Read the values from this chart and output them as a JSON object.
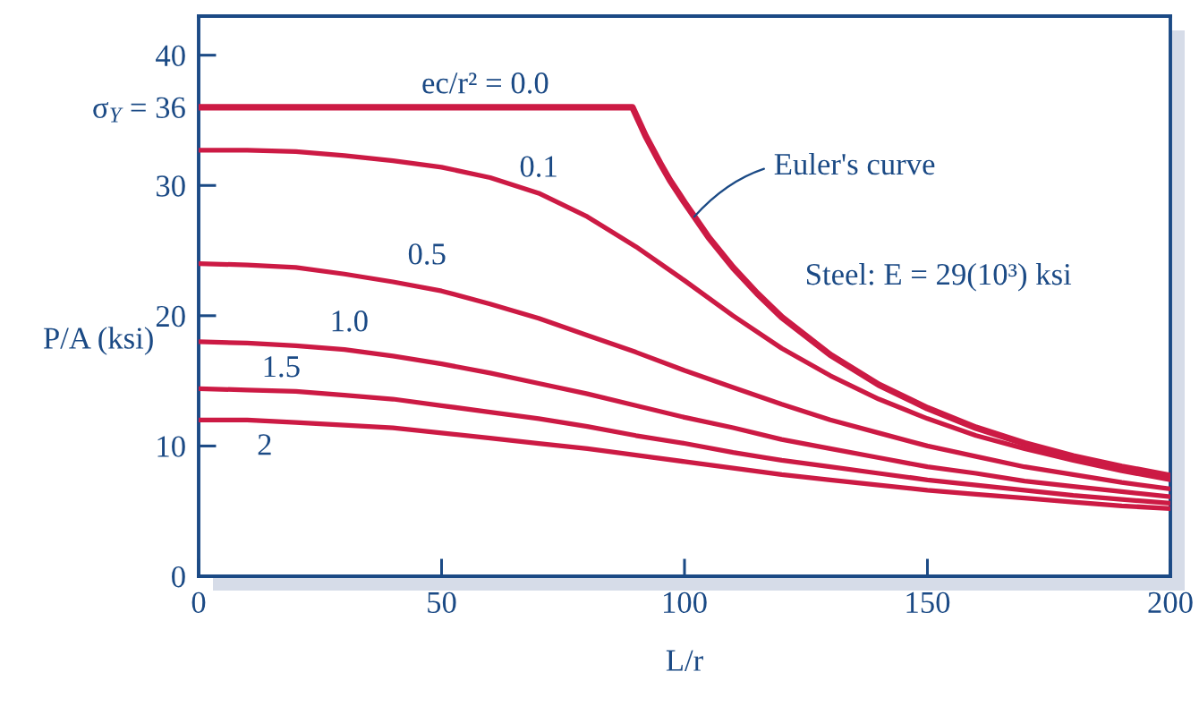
{
  "chart_data": {
    "type": "line",
    "xlabel": "L/r",
    "ylabel": "P/A (ksi)",
    "xlim": [
      0,
      200
    ],
    "xticks": [
      0,
      50,
      100,
      150,
      200
    ],
    "ylim": [
      0,
      43
    ],
    "yticks": [
      0,
      10,
      20,
      30,
      {
        "value": 36,
        "label": "σ$_{Y}$ = 36"
      },
      40
    ],
    "grid": false,
    "marker": "none",
    "line_style": "solid",
    "annotations": [
      {
        "text": "Euler's curve",
        "x": 102,
        "y": 27.6
      },
      "Steel: E = 29(10³) ksi"
    ],
    "series": [
      {
        "name": "ec/r² = 0.0",
        "color": "#cc1a44",
        "x": [
          0,
          89.3,
          92,
          95,
          97,
          100,
          105,
          110,
          115,
          120,
          130,
          140,
          150,
          160,
          170,
          180,
          190,
          200
        ],
        "values": [
          36.0,
          36.0,
          33.8,
          31.7,
          30.4,
          28.7,
          26.0,
          23.7,
          21.7,
          19.9,
          17.0,
          14.7,
          12.9,
          11.4,
          10.2,
          9.2,
          8.4,
          7.7
        ]
      },
      {
        "name": "0.1",
        "color": "#cc1a44",
        "x": [
          0,
          10,
          20,
          30,
          40,
          50,
          60,
          70,
          80,
          90,
          100,
          110,
          120,
          130,
          140,
          150,
          160,
          170,
          180,
          190,
          200
        ],
        "values": [
          32.7,
          32.7,
          32.6,
          32.3,
          31.9,
          31.4,
          30.6,
          29.4,
          27.6,
          25.3,
          22.7,
          20.0,
          17.5,
          15.4,
          13.6,
          12.1,
          10.8,
          9.8,
          8.9,
          8.1,
          7.4
        ]
      },
      {
        "name": "0.5",
        "color": "#cc1a44",
        "x": [
          0,
          10,
          20,
          30,
          40,
          50,
          60,
          70,
          80,
          90,
          100,
          110,
          120,
          130,
          140,
          150,
          160,
          170,
          180,
          190,
          200
        ],
        "values": [
          24.0,
          23.9,
          23.7,
          23.2,
          22.6,
          21.9,
          20.9,
          19.8,
          18.5,
          17.2,
          15.8,
          14.5,
          13.2,
          12.0,
          11.0,
          10.0,
          9.2,
          8.4,
          7.8,
          7.2,
          6.7
        ]
      },
      {
        "name": "1.0",
        "color": "#cc1a44",
        "x": [
          0,
          10,
          20,
          30,
          40,
          50,
          60,
          70,
          80,
          90,
          100,
          110,
          120,
          130,
          140,
          150,
          160,
          170,
          180,
          190,
          200
        ],
        "values": [
          18.0,
          17.9,
          17.7,
          17.4,
          16.9,
          16.3,
          15.6,
          14.8,
          14.0,
          13.1,
          12.2,
          11.4,
          10.5,
          9.8,
          9.1,
          8.4,
          7.9,
          7.3,
          6.9,
          6.5,
          6.1
        ]
      },
      {
        "name": "1.5",
        "color": "#cc1a44",
        "x": [
          0,
          10,
          20,
          30,
          40,
          50,
          60,
          70,
          80,
          90,
          100,
          110,
          120,
          130,
          140,
          150,
          160,
          170,
          180,
          190,
          200
        ],
        "values": [
          14.4,
          14.3,
          14.2,
          13.9,
          13.6,
          13.1,
          12.6,
          12.1,
          11.5,
          10.8,
          10.2,
          9.5,
          8.9,
          8.4,
          7.9,
          7.4,
          7.0,
          6.6,
          6.2,
          5.9,
          5.6
        ]
      },
      {
        "name": "2",
        "color": "#cc1a44",
        "x": [
          0,
          10,
          20,
          30,
          40,
          50,
          60,
          70,
          80,
          90,
          100,
          110,
          120,
          130,
          140,
          150,
          160,
          170,
          180,
          190,
          200
        ],
        "values": [
          12.0,
          12.0,
          11.8,
          11.6,
          11.4,
          11.0,
          10.6,
          10.2,
          9.8,
          9.3,
          8.8,
          8.3,
          7.8,
          7.4,
          7.0,
          6.6,
          6.3,
          6.0,
          5.7,
          5.4,
          5.2
        ]
      }
    ]
  }
}
